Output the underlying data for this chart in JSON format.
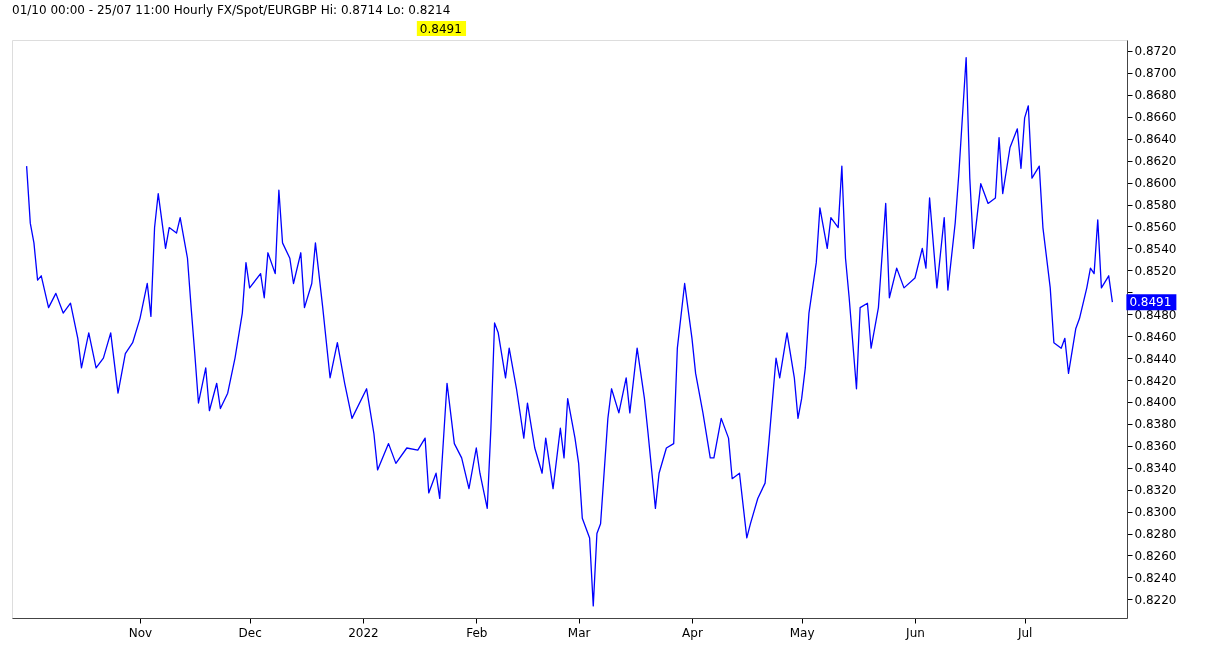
{
  "chart_data": {
    "type": "line",
    "title": "01/10 00:00 - 25/07 11:00  Hourly  FX/Spot/EURGBP  Hi: 0.8714  Lo: 0.8214",
    "annotations": [
      "0.8491",
      {
        "text": "0.8491",
        "x": "2022-07-25",
        "y": 0.8491
      }
    ],
    "x": [
      "2021-10-01",
      "2021-10-02",
      "2021-10-03",
      "2021-10-04",
      "2021-10-05",
      "2021-10-07",
      "2021-10-09",
      "2021-10-11",
      "2021-10-13",
      "2021-10-15",
      "2021-10-16",
      "2021-10-18",
      "2021-10-20",
      "2021-10-22",
      "2021-10-24",
      "2021-10-26",
      "2021-10-28",
      "2021-10-30",
      "2021-11-01",
      "2021-11-03",
      "2021-11-04",
      "2021-11-05",
      "2021-11-06",
      "2021-11-08",
      "2021-11-09",
      "2021-11-11",
      "2021-11-12",
      "2021-11-14",
      "2021-11-15",
      "2021-11-16",
      "2021-11-17",
      "2021-11-19",
      "2021-11-20",
      "2021-11-22",
      "2021-11-23",
      "2021-11-25",
      "2021-11-27",
      "2021-11-29",
      "2021-11-30",
      "2021-12-01",
      "2021-12-04",
      "2021-12-05",
      "2021-12-06",
      "2021-12-08",
      "2021-12-09",
      "2021-12-10",
      "2021-12-12",
      "2021-12-13",
      "2021-12-15",
      "2021-12-16",
      "2021-12-18",
      "2021-12-19",
      "2021-12-21",
      "2021-12-23",
      "2021-12-25",
      "2021-12-27",
      "2021-12-29",
      "2022-01-02",
      "2022-01-04",
      "2022-01-05",
      "2022-01-08",
      "2022-01-10",
      "2022-01-13",
      "2022-01-16",
      "2022-01-18",
      "2022-01-19",
      "2022-01-21",
      "2022-01-22",
      "2022-01-24",
      "2022-01-26",
      "2022-01-28",
      "2022-01-30",
      "2022-02-01",
      "2022-02-02",
      "2022-02-04",
      "2022-02-05",
      "2022-02-06",
      "2022-02-07",
      "2022-02-09",
      "2022-02-10",
      "2022-02-12",
      "2022-02-14",
      "2022-02-15",
      "2022-02-17",
      "2022-02-19",
      "2022-02-20",
      "2022-02-22",
      "2022-02-24",
      "2022-02-25",
      "2022-02-26",
      "2022-02-28",
      "2022-03-01",
      "2022-03-02",
      "2022-03-04",
      "2022-03-05",
      "2022-03-06",
      "2022-03-07",
      "2022-03-09",
      "2022-03-10",
      "2022-03-12",
      "2022-03-14",
      "2022-03-15",
      "2022-03-17",
      "2022-03-19",
      "2022-03-20",
      "2022-03-22",
      "2022-03-23",
      "2022-03-25",
      "2022-03-27",
      "2022-03-28",
      "2022-03-30",
      "2022-04-01",
      "2022-04-02",
      "2022-04-04",
      "2022-04-06",
      "2022-04-07",
      "2022-04-09",
      "2022-04-11",
      "2022-04-12",
      "2022-04-14",
      "2022-04-16",
      "2022-04-17",
      "2022-04-19",
      "2022-04-21",
      "2022-04-22",
      "2022-04-24",
      "2022-04-25",
      "2022-04-27",
      "2022-04-29",
      "2022-04-30",
      "2022-05-01",
      "2022-05-02",
      "2022-05-03",
      "2022-05-05",
      "2022-05-06",
      "2022-05-08",
      "2022-05-09",
      "2022-05-11",
      "2022-05-12",
      "2022-05-13",
      "2022-05-14",
      "2022-05-16",
      "2022-05-17",
      "2022-05-19",
      "2022-05-20",
      "2022-05-22",
      "2022-05-24",
      "2022-05-25",
      "2022-05-27",
      "2022-05-29",
      "2022-06-01",
      "2022-06-03",
      "2022-06-04",
      "2022-06-05",
      "2022-06-07",
      "2022-06-09",
      "2022-06-10",
      "2022-06-12",
      "2022-06-13",
      "2022-06-15",
      "2022-06-16",
      "2022-06-17",
      "2022-06-19",
      "2022-06-21",
      "2022-06-23",
      "2022-06-24",
      "2022-06-25",
      "2022-06-27",
      "2022-06-29",
      "2022-06-30",
      "2022-07-01",
      "2022-07-02",
      "2022-07-03",
      "2022-07-05",
      "2022-07-06",
      "2022-07-08",
      "2022-07-09",
      "2022-07-11",
      "2022-07-12",
      "2022-07-13",
      "2022-07-15",
      "2022-07-16",
      "2022-07-18",
      "2022-07-19",
      "2022-07-20",
      "2022-07-21",
      "2022-07-22",
      "2022-07-24",
      "2022-07-25"
    ],
    "series": [
      {
        "color": "#0000ff",
        "values": [
          0.8615,
          0.8563,
          0.8545,
          0.8511,
          0.8515,
          0.8486,
          0.8499,
          0.8481,
          0.849,
          0.8458,
          0.8431,
          0.8463,
          0.8431,
          0.844,
          0.8463,
          0.8408,
          0.8444,
          0.8454,
          0.8476,
          0.8508,
          0.8478,
          0.8559,
          0.859,
          0.854,
          0.8559,
          0.8554,
          0.8568,
          0.8531,
          0.8486,
          0.8444,
          0.8399,
          0.8431,
          0.8392,
          0.8417,
          0.8394,
          0.8408,
          0.844,
          0.8481,
          0.8527,
          0.8504,
          0.8517,
          0.8495,
          0.8536,
          0.8517,
          0.8593,
          0.8545,
          0.8531,
          0.8508,
          0.8536,
          0.8486,
          0.8508,
          0.8545,
          0.8486,
          0.8422,
          0.8454,
          0.8417,
          0.8385,
          0.8412,
          0.8371,
          0.8338,
          0.8362,
          0.8344,
          0.8358,
          0.8356,
          0.8367,
          0.8317,
          0.8335,
          0.8312,
          0.8417,
          0.8362,
          0.8349,
          0.8321,
          0.8358,
          0.8335,
          0.8303,
          0.8376,
          0.8472,
          0.8463,
          0.8422,
          0.8449,
          0.8412,
          0.8367,
          0.8399,
          0.8358,
          0.8335,
          0.8367,
          0.8321,
          0.8376,
          0.8349,
          0.8403,
          0.8367,
          0.8344,
          0.8294,
          0.8276,
          0.8214,
          0.828,
          0.8289,
          0.8385,
          0.8412,
          0.839,
          0.8422,
          0.839,
          0.8449,
          0.8403,
          0.8371,
          0.8303,
          0.8335,
          0.8358,
          0.8362,
          0.8449,
          0.8508,
          0.8458,
          0.8426,
          0.839,
          0.8349,
          0.8349,
          0.8385,
          0.8367,
          0.833,
          0.8335,
          0.8276,
          0.8289,
          0.8312,
          0.8326,
          0.8362,
          0.844,
          0.8422,
          0.8463,
          0.8422,
          0.8385,
          0.8403,
          0.8431,
          0.8481,
          0.8527,
          0.8577,
          0.854,
          0.8568,
          0.8559,
          0.8615,
          0.8531,
          0.8495,
          0.8412,
          0.8486,
          0.849,
          0.8449,
          0.8486,
          0.8581,
          0.8495,
          0.8522,
          0.8504,
          0.8513,
          0.854,
          0.8522,
          0.8586,
          0.8504,
          0.8568,
          0.8502,
          0.8563,
          0.8608,
          0.8714,
          0.8604,
          0.854,
          0.8599,
          0.8581,
          0.8586,
          0.8641,
          0.859,
          0.8632,
          0.8649,
          0.8613,
          0.8659,
          0.867,
          0.8604,
          0.8615,
          0.8559,
          0.8504,
          0.8454,
          0.8449,
          0.8458,
          0.8426,
          0.8467,
          0.8476,
          0.8504,
          0.8522,
          0.8517,
          0.8566,
          0.8504,
          0.8515,
          0.8491
        ]
      }
    ],
    "xlim": [
      "2021-09-27",
      "2022-07-29"
    ],
    "xticks": [
      {
        "value": "2021-11-01",
        "label": "Nov"
      },
      {
        "value": "2021-12-01",
        "label": "Dec"
      },
      {
        "value": "2022-01-01",
        "label": "2022"
      },
      {
        "value": "2022-02-01",
        "label": "Feb"
      },
      {
        "value": "2022-03-01",
        "label": "Mar"
      },
      {
        "value": "2022-04-01",
        "label": "Apr"
      },
      {
        "value": "2022-05-01",
        "label": "May"
      },
      {
        "value": "2022-06-01",
        "label": "Jun"
      },
      {
        "value": "2022-07-01",
        "label": "Jul"
      }
    ],
    "ylim": [
      0.8203,
      0.873
    ],
    "yticks": [
      {
        "value": 0.822,
        "label": "0.8220"
      },
      {
        "value": 0.824,
        "label": "0.8240"
      },
      {
        "value": 0.826,
        "label": "0.8260"
      },
      {
        "value": 0.828,
        "label": "0.8280"
      },
      {
        "value": 0.83,
        "label": "0.8300"
      },
      {
        "value": 0.832,
        "label": "0.8320"
      },
      {
        "value": 0.834,
        "label": "0.8340"
      },
      {
        "value": 0.836,
        "label": "0.8360"
      },
      {
        "value": 0.838,
        "label": "0.8380"
      },
      {
        "value": 0.84,
        "label": "0.8400"
      },
      {
        "value": 0.842,
        "label": "0.8420"
      },
      {
        "value": 0.844,
        "label": "0.8440"
      },
      {
        "value": 0.846,
        "label": "0.8460"
      },
      {
        "value": 0.848,
        "label": "0.8480"
      },
      {
        "value": 0.85,
        "label": null
      },
      {
        "value": 0.852,
        "label": "0.8520"
      },
      {
        "value": 0.854,
        "label": "0.8540"
      },
      {
        "value": 0.856,
        "label": "0.8560"
      },
      {
        "value": 0.858,
        "label": "0.8580"
      },
      {
        "value": 0.86,
        "label": "0.8600"
      },
      {
        "value": 0.862,
        "label": "0.8620"
      },
      {
        "value": 0.864,
        "label": "0.8640"
      },
      {
        "value": 0.866,
        "label": "0.8660"
      },
      {
        "value": 0.868,
        "label": "0.8680"
      },
      {
        "value": 0.87,
        "label": "0.8700"
      },
      {
        "value": 0.872,
        "label": "0.8720"
      }
    ],
    "grid": false,
    "marker": "none",
    "line_style": "solid"
  }
}
